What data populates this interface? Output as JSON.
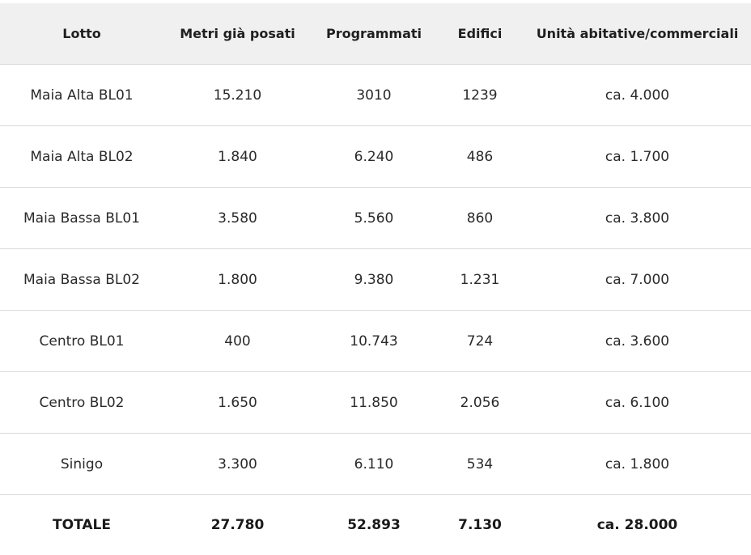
{
  "table": {
    "headers": [
      "Lotto",
      "Metri già posati",
      "Programmati",
      "Edifici",
      "Unità abitative/commerciali"
    ],
    "rows": [
      [
        "Maia Alta BL01",
        "15.210",
        "3010",
        "1239",
        "ca. 4.000"
      ],
      [
        "Maia Alta BL02",
        "1.840",
        "6.240",
        "486",
        "ca. 1.700"
      ],
      [
        "Maia Bassa BL01",
        "3.580",
        "5.560",
        "860",
        "ca. 3.800"
      ],
      [
        "Maia Bassa BL02",
        "1.800",
        "9.380",
        "1.231",
        "ca. 7.000"
      ],
      [
        "Centro BL01",
        "400",
        "10.743",
        "724",
        "ca. 3.600"
      ],
      [
        "Centro BL02",
        "1.650",
        "11.850",
        "2.056",
        "ca. 6.100"
      ],
      [
        "Sinigo",
        "3.300",
        "6.110",
        "534",
        "ca. 1.800"
      ]
    ],
    "total": [
      "TOTALE",
      "27.780",
      "52.893",
      "7.130",
      "ca. 28.000"
    ]
  }
}
